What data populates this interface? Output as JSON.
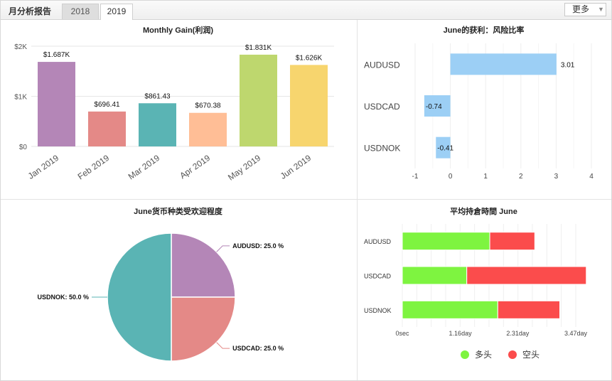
{
  "header": {
    "title": "月分析报告",
    "tabs": [
      {
        "label": "2018",
        "active": false
      },
      {
        "label": "2019",
        "active": true
      }
    ],
    "more_label": "更多",
    "more_icon": "chevron-down-icon"
  },
  "chart_data": [
    {
      "type": "bar",
      "title": "Monthly Gain(利润)",
      "categories": [
        "Jan 2019",
        "Feb 2019",
        "Mar 2019",
        "Apr 2019",
        "May 2019",
        "Jun 2019"
      ],
      "values": [
        1687,
        696.41,
        861.43,
        670.38,
        1831,
        1626
      ],
      "value_labels": [
        "$1.687K",
        "$696.41",
        "$861.43",
        "$670.38",
        "$1.831K",
        "$1.626K"
      ],
      "colors": [
        "#b486b7",
        "#e48987",
        "#5ab4b4",
        "#ffbe96",
        "#bed76e",
        "#f7d56e"
      ],
      "ylim": [
        0,
        2000
      ],
      "yticks": [
        0,
        1000,
        2000
      ],
      "ytick_labels": [
        "$0",
        "$1K",
        "$2K"
      ],
      "grid": true
    },
    {
      "type": "bar",
      "orientation": "horizontal",
      "title": "June的获利：风险比率",
      "categories": [
        "AUDUSD",
        "USDCAD",
        "USDNOK"
      ],
      "values": [
        3.01,
        -0.74,
        -0.41
      ],
      "value_labels": [
        "3.01",
        "-0.74",
        "-0.41"
      ],
      "color": "#9ccff5",
      "xlim": [
        -1,
        4
      ],
      "xticks": [
        -1,
        0,
        1,
        2,
        3,
        4
      ],
      "xtick_labels": [
        "-1",
        "0",
        "1",
        "2",
        "3",
        "4"
      ],
      "grid": true
    },
    {
      "type": "pie",
      "title": "June货币种类受欢迎程度",
      "labels": [
        "AUDUSD",
        "USDCAD",
        "USDNOK"
      ],
      "values": [
        25.0,
        25.0,
        50.0
      ],
      "slice_labels": [
        "AUDUSD: 25.0 %",
        "USDCAD: 25.0 %",
        "USDNOK: 50.0 %"
      ],
      "colors": [
        "#b486b7",
        "#e48987",
        "#5ab4b4"
      ]
    },
    {
      "type": "bar",
      "orientation": "horizontal",
      "stacked": true,
      "title": "平均持倉時間 June",
      "categories": [
        "AUDUSD",
        "USDCAD",
        "USDNOK"
      ],
      "x_unit": "day",
      "xlim": [
        0,
        3.47
      ],
      "xticks": [
        0,
        1.16,
        2.31,
        3.47
      ],
      "xtick_labels": [
        "0sec",
        "1.16day",
        "2.31day",
        "3.47day"
      ],
      "series": [
        {
          "name": "多头",
          "color": "#7ef440",
          "values": [
            1.75,
            1.29,
            1.91
          ]
        },
        {
          "name": "空头",
          "color": "#fb4c4c",
          "values": [
            0.9,
            2.39,
            1.24
          ]
        }
      ],
      "legend_position": "bottom"
    }
  ]
}
